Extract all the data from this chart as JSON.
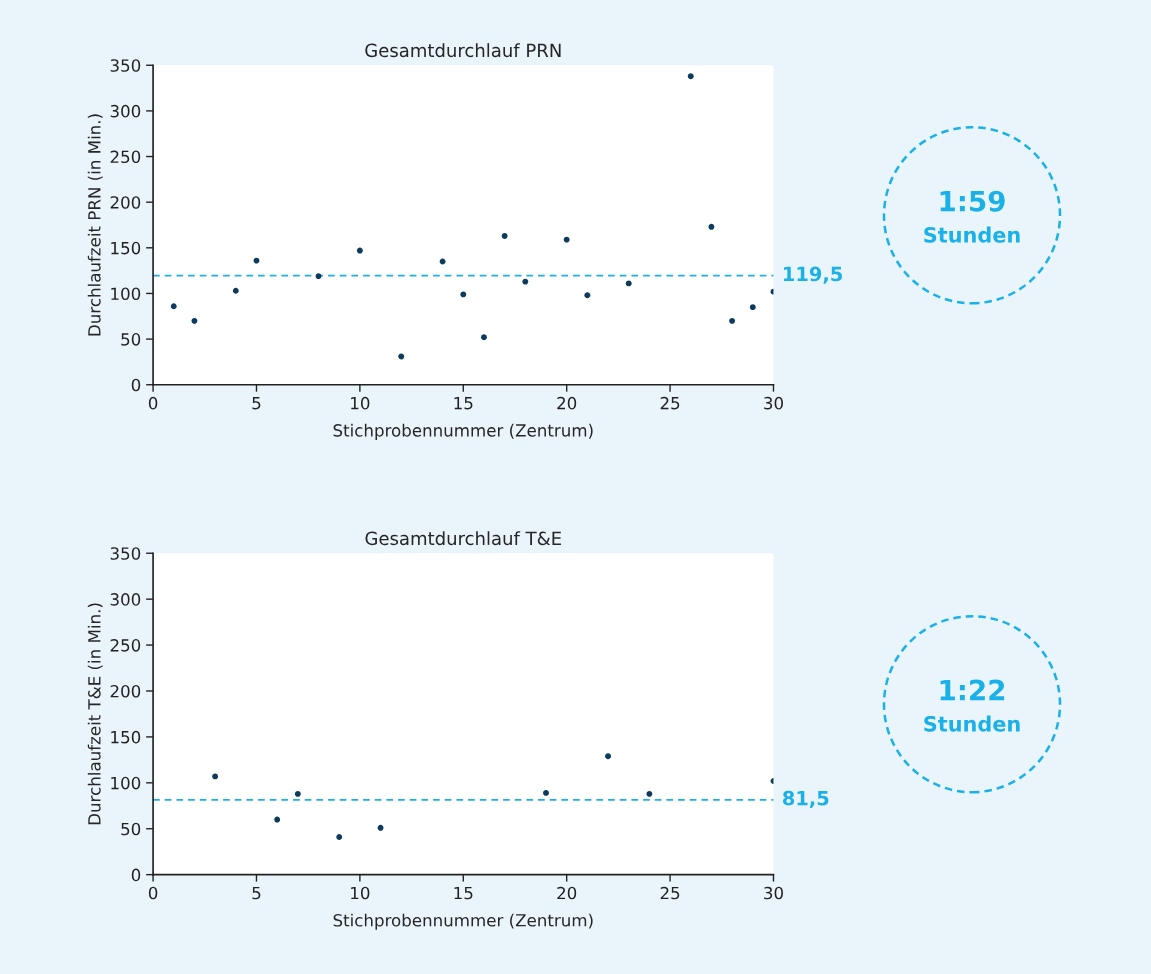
{
  "chart_data": [
    {
      "type": "scatter",
      "title": "Gesamtdurchlauf PRN",
      "xlabel": "Stichprobennummer (Zentrum)",
      "ylabel": "Durchlaufzeit PRN (in Min.)",
      "x": [
        1,
        2,
        4,
        5,
        8,
        10,
        12,
        14,
        15,
        16,
        17,
        18,
        20,
        21,
        23,
        26,
        27,
        28,
        29,
        30
      ],
      "values": [
        86,
        70,
        103,
        136,
        119,
        147,
        31,
        135,
        99,
        52,
        163,
        113,
        159,
        98,
        111,
        338,
        173,
        70,
        85,
        102
      ],
      "color": "#0d3b5e",
      "marker": "circle",
      "grid": false,
      "xlim": [
        0,
        30
      ],
      "ylim": [
        0,
        350
      ],
      "xticks": [
        0,
        5,
        10,
        15,
        20,
        25,
        30
      ],
      "yticks": [
        0,
        50,
        100,
        150,
        200,
        250,
        300,
        350
      ],
      "ref_lines": [
        {
          "axis": "y",
          "value": 119.5,
          "label": "119,5",
          "color": "#1ab0e8",
          "line_style": "dashed"
        }
      ],
      "annotations": [
        "1:59",
        "Stunden"
      ]
    },
    {
      "type": "scatter",
      "title": "Gesamtdurchlauf T&E",
      "xlabel": "Stichprobennummer (Zentrum)",
      "ylabel": "Durchlaufzeit T&E (in Min.)",
      "x": [
        3,
        6,
        7,
        9,
        11,
        19,
        22,
        24,
        30
      ],
      "values": [
        107,
        60,
        88,
        41,
        51,
        89,
        129,
        88,
        102
      ],
      "color": "#0d3b5e",
      "marker": "circle",
      "grid": false,
      "xlim": [
        0,
        30
      ],
      "ylim": [
        0,
        350
      ],
      "xticks": [
        0,
        5,
        10,
        15,
        20,
        25,
        30
      ],
      "yticks": [
        0,
        50,
        100,
        150,
        200,
        250,
        300,
        350
      ],
      "ref_lines": [
        {
          "axis": "y",
          "value": 81.5,
          "label": "81,5",
          "color": "#1ab0e8",
          "line_style": "dashed"
        }
      ],
      "annotations": [
        "1:22",
        "Stunden"
      ]
    }
  ]
}
